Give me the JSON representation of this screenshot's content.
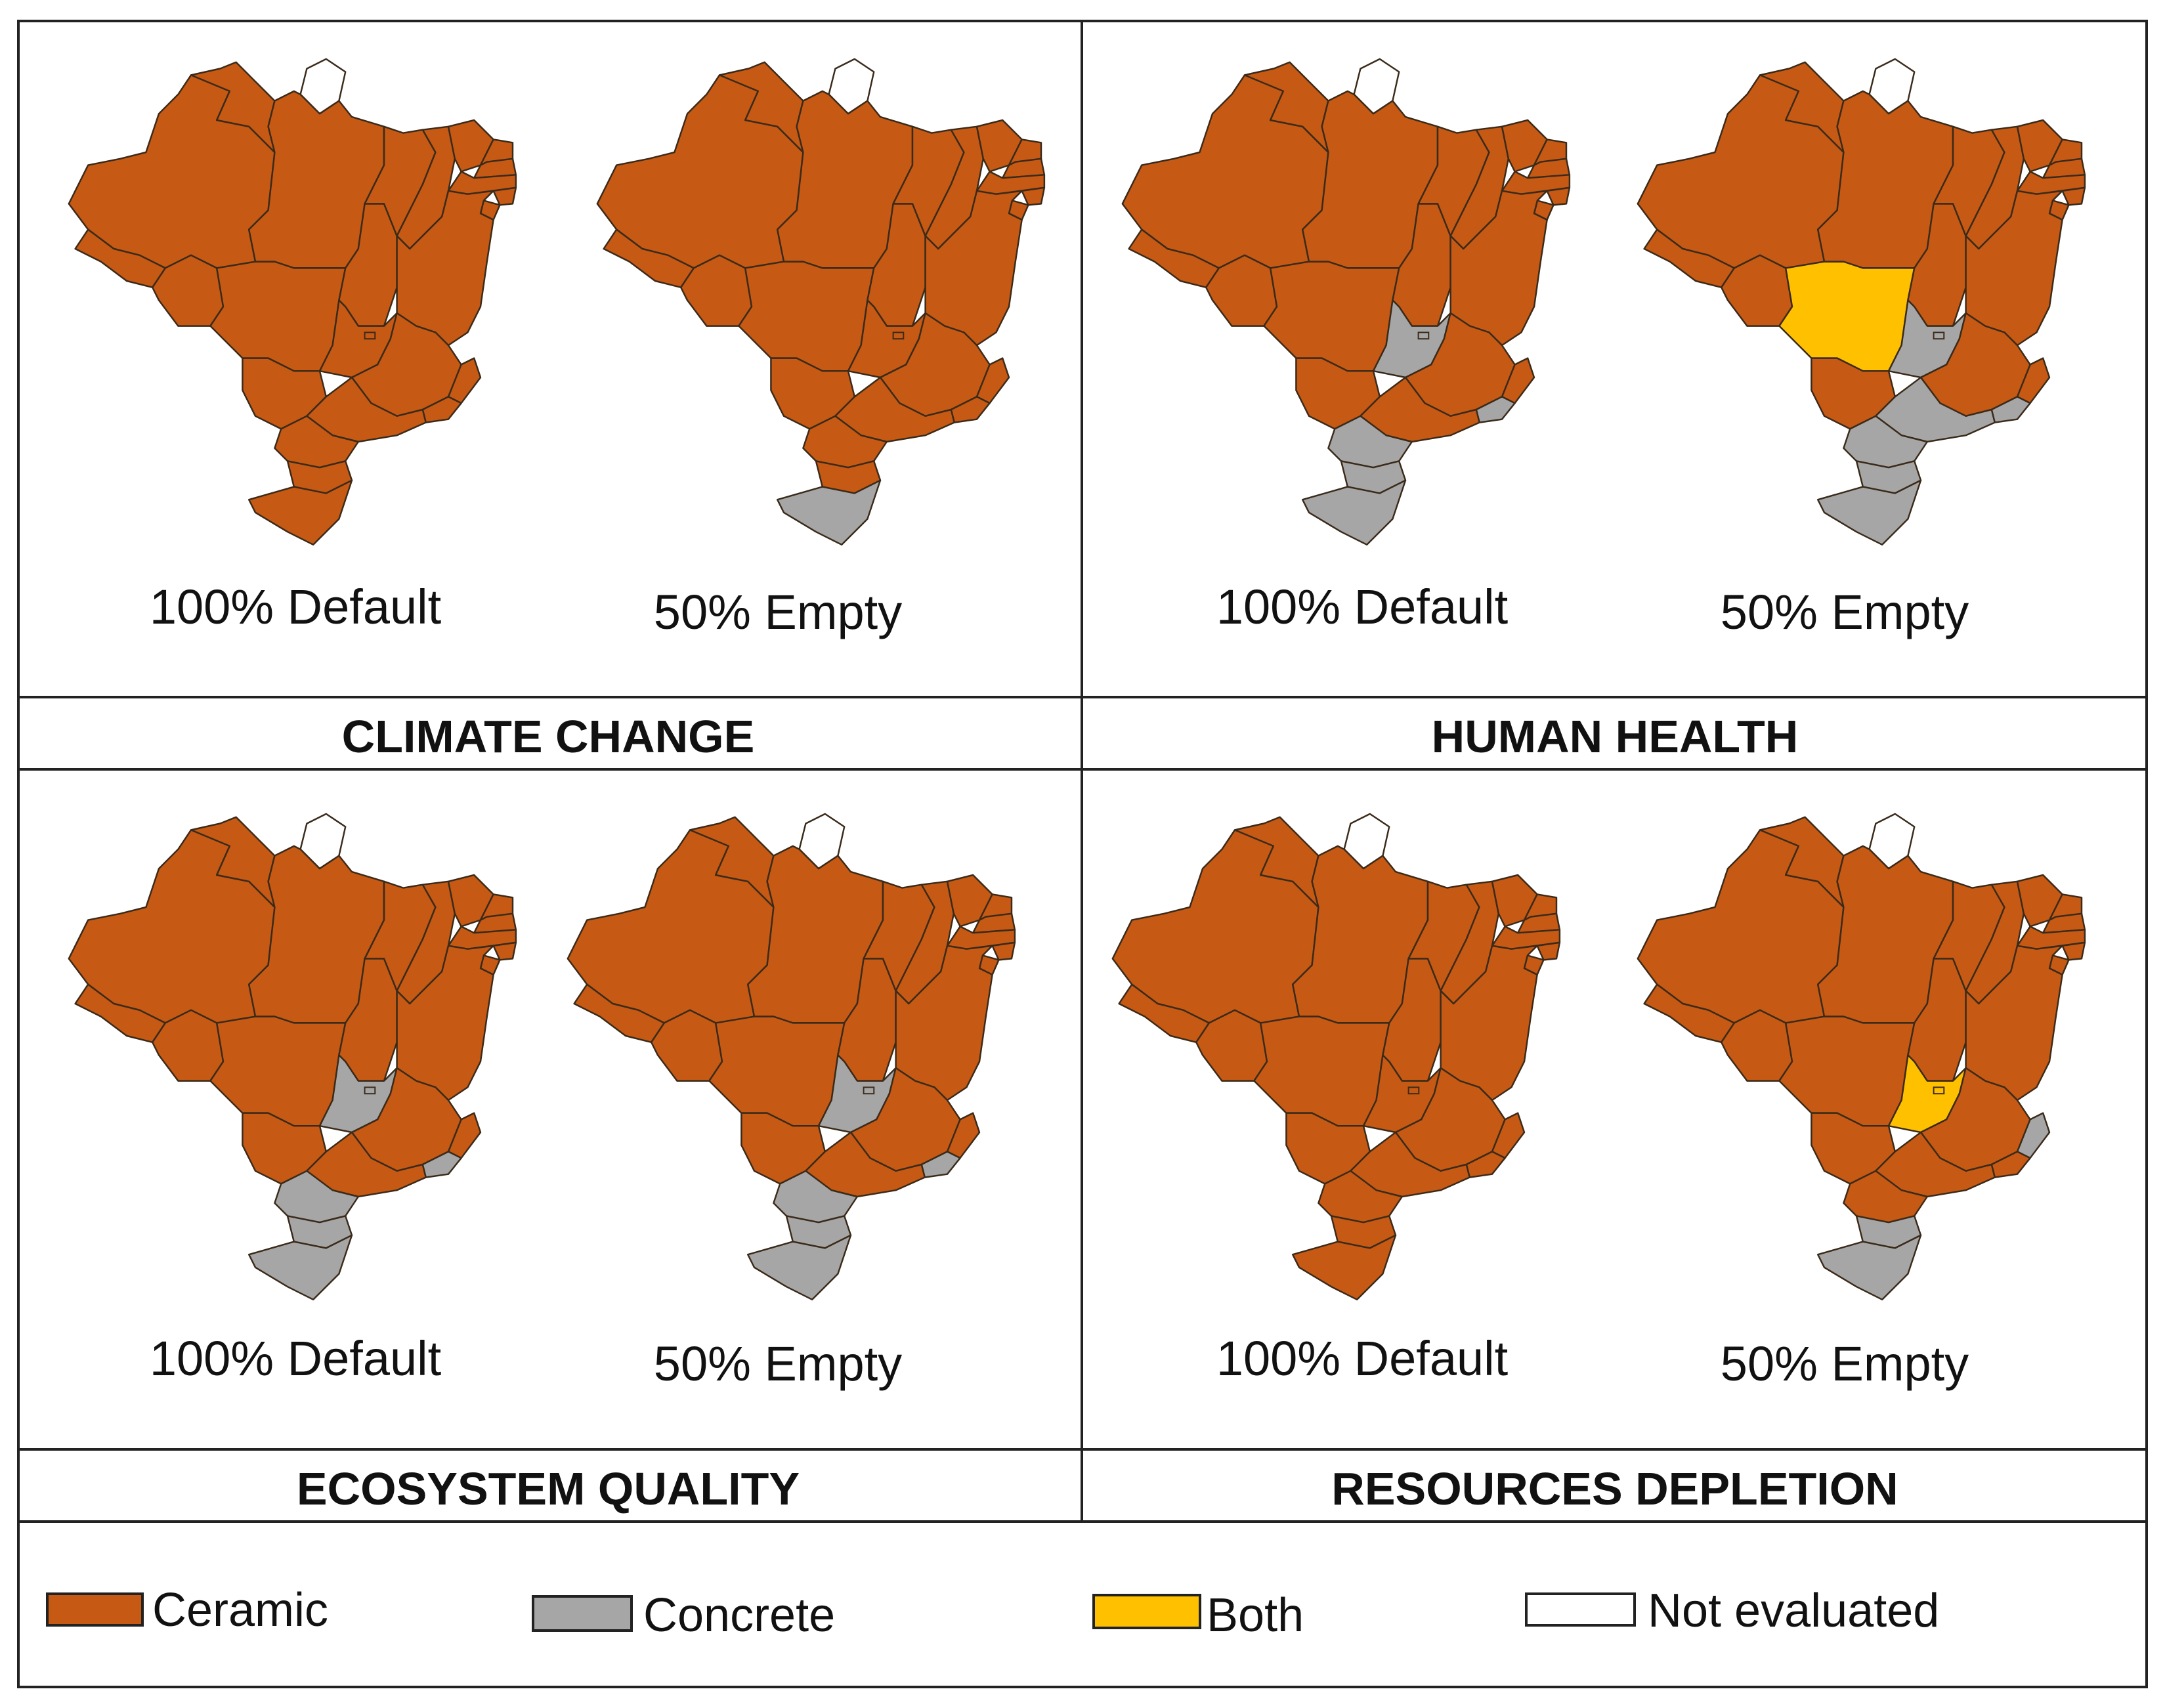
{
  "colors": {
    "ceramic": "#C65913",
    "concrete": "#A6A6A6",
    "both": "#FFC000",
    "not_evaluated": "#FFFFFF",
    "border": "#3a2a1a"
  },
  "panels": [
    {
      "title": "CLIMATE CHANGE",
      "maps": [
        {
          "label": "100% Default",
          "concrete": [],
          "both": []
        },
        {
          "label": "50% Empty",
          "concrete": [
            "RS"
          ],
          "both": []
        }
      ]
    },
    {
      "title": "HUMAN HEALTH",
      "maps": [
        {
          "label": "100% Default",
          "concrete": [
            "GO",
            "PR",
            "SC",
            "RS",
            "RJ"
          ],
          "both": []
        },
        {
          "label": "50% Empty",
          "concrete": [
            "GO",
            "SP",
            "PR",
            "SC",
            "RS",
            "RJ"
          ],
          "both": [
            "MT"
          ]
        }
      ]
    },
    {
      "title": "ECOSYSTEM QUALITY",
      "maps": [
        {
          "label": "100% Default",
          "concrete": [
            "GO",
            "PR",
            "SC",
            "RS",
            "RJ"
          ],
          "both": []
        },
        {
          "label": "50% Empty",
          "concrete": [
            "GO",
            "PR",
            "SC",
            "RS",
            "RJ"
          ],
          "both": []
        }
      ]
    },
    {
      "title": "RESOURCES DEPLETION",
      "maps": [
        {
          "label": "100% Default",
          "concrete": [],
          "both": []
        },
        {
          "label": "50% Empty",
          "concrete": [
            "SC",
            "RS",
            "ES"
          ],
          "both": [
            "GO"
          ]
        }
      ]
    }
  ],
  "legend": [
    {
      "label": "Ceramic",
      "color": "#C65913"
    },
    {
      "label": "Concrete",
      "color": "#A6A6A6"
    },
    {
      "label": "Both",
      "color": "#FFC000"
    },
    {
      "label": "Not evaluated",
      "color": "#FFFFFF"
    }
  ]
}
